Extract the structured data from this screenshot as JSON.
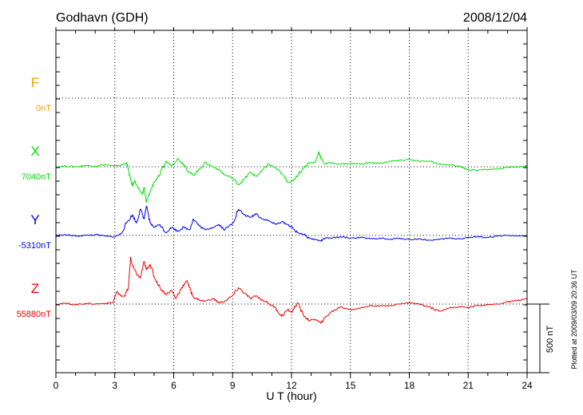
{
  "chart_data": {
    "type": "line",
    "title": "Godhavn (GDH)",
    "date": "2008/12/04",
    "xlabel": "U T (hour)",
    "xlim": [
      0,
      24
    ],
    "xticks": [
      0,
      3,
      6,
      9,
      12,
      15,
      18,
      21,
      24
    ],
    "grid": true,
    "scale_label": "500 nT",
    "plotted_note": "Plotted at 2009/03/09 20:36 UT",
    "series": [
      {
        "name": "F",
        "baseline_label": "0nT",
        "color": "#f0a000",
        "x": [],
        "y": []
      },
      {
        "name": "X",
        "baseline_label": "7040nT",
        "color": "#00e000",
        "x": [
          0,
          0.5,
          1,
          1.5,
          2,
          2.5,
          3,
          3.3,
          3.6,
          3.8,
          3.9,
          4.0,
          4.2,
          4.4,
          4.5,
          4.6,
          4.8,
          5.0,
          5.3,
          5.6,
          5.9,
          6.2,
          6.5,
          6.8,
          7.0,
          7.3,
          7.6,
          8.0,
          8.3,
          8.6,
          9.0,
          9.3,
          9.6,
          9.9,
          10.2,
          10.5,
          10.8,
          11.2,
          11.5,
          11.8,
          12.0,
          12.2,
          12.6,
          12.9,
          13.2,
          13.4,
          13.5,
          13.7,
          14.0,
          14.5,
          15.0,
          15.5,
          16.0,
          16.5,
          17.0,
          17.5,
          18.0,
          18.5,
          19.0,
          19.5,
          20.0,
          20.5,
          21.0,
          21.5,
          22.0,
          22.5,
          23.0,
          23.5,
          24.0
        ],
        "y": [
          0,
          5,
          0,
          10,
          5,
          15,
          5,
          10,
          30,
          -90,
          -140,
          -100,
          -160,
          -200,
          -150,
          -260,
          -180,
          -110,
          -60,
          40,
          10,
          60,
          20,
          -40,
          -60,
          -20,
          30,
          0,
          -20,
          -60,
          -80,
          -130,
          -90,
          -40,
          -70,
          -30,
          20,
          -10,
          -50,
          -110,
          -110,
          -80,
          -10,
          30,
          30,
          110,
          60,
          20,
          30,
          20,
          25,
          20,
          30,
          25,
          40,
          45,
          55,
          40,
          40,
          20,
          15,
          5,
          -20,
          -25,
          -20,
          -15,
          -5,
          0,
          5
        ]
      },
      {
        "name": "Y",
        "baseline_label": "-5310nT",
        "color": "#0000ee",
        "x": [
          0,
          0.5,
          1,
          1.5,
          2,
          2.5,
          3,
          3.3,
          3.6,
          3.9,
          4.1,
          4.3,
          4.5,
          4.6,
          4.8,
          5.0,
          5.3,
          5.6,
          5.9,
          6.2,
          6.5,
          6.8,
          7.0,
          7.3,
          7.6,
          8.0,
          8.3,
          8.6,
          9.0,
          9.3,
          9.6,
          9.9,
          10.2,
          10.5,
          10.8,
          11.2,
          11.5,
          11.8,
          12.0,
          12.3,
          12.6,
          12.9,
          13.2,
          13.5,
          13.7,
          14.0,
          14.5,
          15.0,
          15.5,
          16.0,
          16.5,
          17.0,
          17.5,
          18.0,
          18.5,
          19.0,
          19.5,
          20.0,
          20.5,
          21.0,
          21.5,
          22.0,
          22.5,
          23.0,
          23.5,
          24.0
        ],
        "y": [
          0,
          5,
          -5,
          0,
          5,
          -5,
          -10,
          10,
          90,
          150,
          90,
          190,
          120,
          210,
          90,
          60,
          80,
          20,
          60,
          30,
          60,
          40,
          120,
          70,
          40,
          60,
          80,
          40,
          90,
          190,
          150,
          130,
          160,
          120,
          110,
          80,
          100,
          80,
          60,
          20,
          10,
          -20,
          -30,
          -40,
          -20,
          -20,
          -10,
          -20,
          -15,
          -25,
          -20,
          -30,
          -20,
          -30,
          -25,
          -35,
          -30,
          -20,
          -25,
          -15,
          -10,
          -15,
          -5,
          0,
          -5,
          -5
        ]
      },
      {
        "name": "Z",
        "baseline_label": "55880nT",
        "color": "#ee0000",
        "x": [
          0,
          0.5,
          1,
          1.5,
          2,
          2.5,
          2.9,
          3.1,
          3.3,
          3.5,
          3.7,
          3.8,
          3.9,
          4.1,
          4.3,
          4.5,
          4.6,
          4.8,
          5.0,
          5.3,
          5.6,
          5.9,
          6.1,
          6.4,
          6.7,
          6.8,
          7.0,
          7.3,
          7.6,
          8.0,
          8.3,
          8.6,
          9.0,
          9.3,
          9.6,
          9.9,
          10.2,
          10.5,
          10.8,
          11.2,
          11.5,
          11.8,
          12.0,
          12.3,
          12.6,
          12.9,
          13.2,
          13.5,
          13.7,
          14.0,
          14.5,
          15.0,
          15.5,
          16.0,
          16.5,
          17.0,
          17.5,
          18.0,
          18.5,
          19.0,
          19.5,
          20.0,
          20.5,
          21.0,
          21.5,
          22.0,
          22.5,
          23.0,
          23.5,
          24.0
        ],
        "y": [
          0,
          5,
          -5,
          5,
          0,
          5,
          10,
          90,
          60,
          60,
          120,
          340,
          280,
          220,
          190,
          310,
          250,
          290,
          200,
          120,
          70,
          100,
          40,
          120,
          170,
          120,
          50,
          30,
          20,
          40,
          10,
          20,
          60,
          120,
          80,
          40,
          60,
          30,
          10,
          -30,
          -90,
          -40,
          -60,
          10,
          -80,
          -120,
          -110,
          -140,
          -100,
          -60,
          -20,
          -40,
          -30,
          -10,
          -15,
          -10,
          0,
          10,
          0,
          -20,
          -50,
          -30,
          -20,
          -25,
          -10,
          -5,
          0,
          15,
          25,
          40
        ]
      }
    ]
  }
}
